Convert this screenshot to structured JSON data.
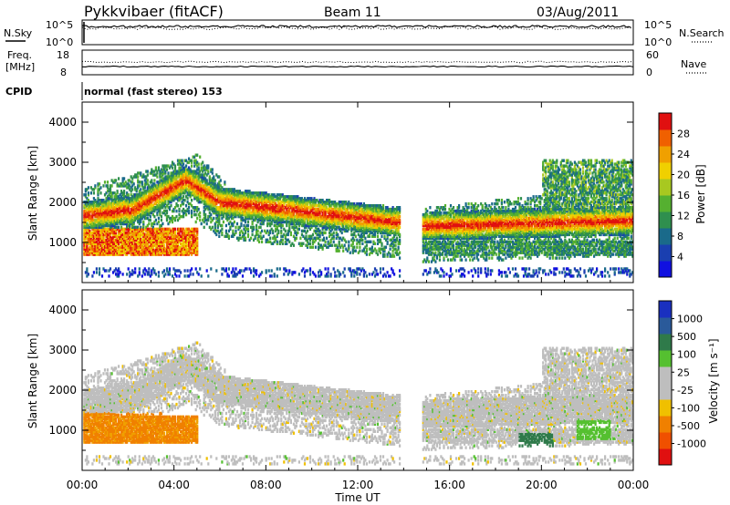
{
  "header": {
    "station": "Pykkvibaer (fitACF)",
    "beam": "Beam 11",
    "date": "03/Aug/2011"
  },
  "top_panels": {
    "nsky_label": "N.Sky",
    "nsky_ticks": [
      "10^5",
      "10^0"
    ],
    "nsearch_label": "N.Search",
    "nsearch_ticks": [
      "10^5",
      "10^0"
    ],
    "freq_label_1": "Freq.",
    "freq_label_2": "[MHz]",
    "freq_ticks": [
      "18",
      "8"
    ],
    "nave_label": "Nave",
    "nave_ticks": [
      "60",
      "0"
    ],
    "cpid_label": "CPID",
    "cpid_text": "normal (fast stereo) 153"
  },
  "chart_data": [
    {
      "type": "heatmap",
      "name": "power",
      "ylabel": "Slant Range [km]",
      "xlabel": "Time UT",
      "y_ticks": [
        "1000",
        "2000",
        "3000",
        "4000"
      ],
      "ylim": [
        0,
        4500
      ],
      "x_ticks": [
        "00:00",
        "04:00",
        "08:00",
        "12:00",
        "16:00",
        "20:00",
        "00:00"
      ],
      "xlim_hours": [
        0,
        24
      ],
      "colorbar_label": "Power [dB]",
      "colorbar_ticks": [
        "4",
        "8",
        "12",
        "16",
        "20",
        "24",
        "28"
      ],
      "colorbar_colors": [
        "#1010e0",
        "#1a3fb0",
        "#1a6a8a",
        "#2f8f4e",
        "#55b030",
        "#a8c820",
        "#f0d000",
        "#f0a000",
        "#f06000",
        "#e01010"
      ]
    },
    {
      "type": "heatmap",
      "name": "velocity",
      "ylabel": "Slant Range [km]",
      "xlabel": "Time UT",
      "y_ticks": [
        "1000",
        "2000",
        "3000",
        "4000"
      ],
      "ylim": [
        0,
        4500
      ],
      "x_ticks": [
        "00:00",
        "04:00",
        "08:00",
        "12:00",
        "16:00",
        "20:00",
        "00:00"
      ],
      "xlim_hours": [
        0,
        24
      ],
      "colorbar_label": "Velocity [m s⁻¹]",
      "colorbar_ticks": [
        "1000",
        "500",
        "100",
        "25",
        "-25",
        "-100",
        "-500",
        "-1000"
      ],
      "colorbar_colors": [
        "#1a30c0",
        "#2a5a9a",
        "#2f7a4a",
        "#55c030",
        "#bebebe",
        "#bebebe",
        "#f0c000",
        "#f08000",
        "#f05000",
        "#e01010"
      ]
    }
  ],
  "xlabel": "Time UT"
}
